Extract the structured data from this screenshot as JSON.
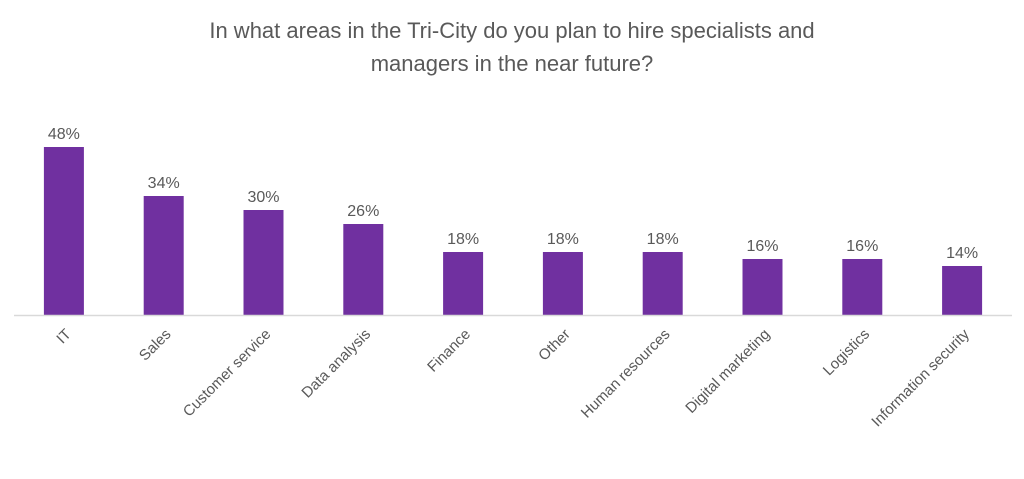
{
  "chart_data": {
    "type": "bar",
    "title_lines": [
      "In what areas in the Tri-City do you plan to hire specialists and",
      "managers in the near future?"
    ],
    "categories": [
      "IT",
      "Sales",
      "Customer service",
      "Data analysis",
      "Finance",
      "Other",
      "Human resources",
      "Digital marketing",
      "Logistics",
      "Information security"
    ],
    "values": [
      48,
      34,
      30,
      26,
      18,
      18,
      18,
      16,
      16,
      14
    ],
    "value_labels": [
      "48%",
      "34%",
      "30%",
      "26%",
      "18%",
      "18%",
      "18%",
      "16%",
      "16%",
      "14%"
    ],
    "unit": "%",
    "ylim": [
      0,
      48
    ],
    "grid": false,
    "legend": "none",
    "bar_color": "#7030A0",
    "text_color": "#595959",
    "axis_color": "#D9D9D9"
  }
}
